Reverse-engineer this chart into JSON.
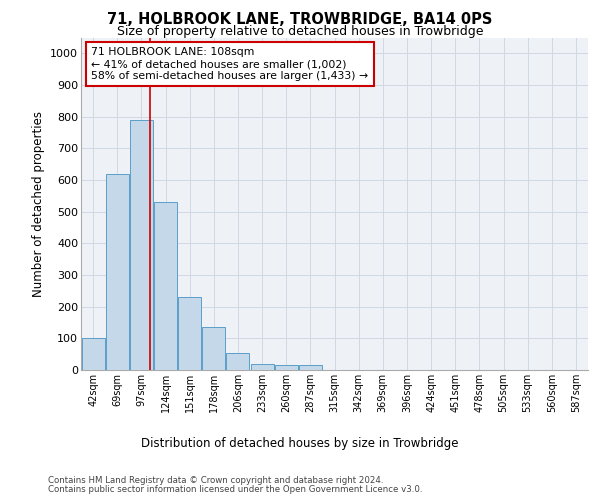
{
  "title1": "71, HOLBROOK LANE, TROWBRIDGE, BA14 0PS",
  "title2": "Size of property relative to detached houses in Trowbridge",
  "xlabel": "Distribution of detached houses by size in Trowbridge",
  "ylabel": "Number of detached properties",
  "categories": [
    "42sqm",
    "69sqm",
    "97sqm",
    "124sqm",
    "151sqm",
    "178sqm",
    "206sqm",
    "233sqm",
    "260sqm",
    "287sqm",
    "315sqm",
    "342sqm",
    "369sqm",
    "396sqm",
    "424sqm",
    "451sqm",
    "478sqm",
    "505sqm",
    "533sqm",
    "560sqm",
    "587sqm"
  ],
  "bar_heights": [
    100,
    620,
    790,
    530,
    230,
    135,
    55,
    20,
    15,
    15,
    0,
    0,
    0,
    0,
    0,
    0,
    0,
    0,
    0,
    0,
    0
  ],
  "bar_color": "#c5d8ea",
  "bar_edge_color": "#5a9ec9",
  "grid_color": "#d0d8e4",
  "bg_color": "#eef2f7",
  "property_line_x": 2.35,
  "annotation_text": "71 HOLBROOK LANE: 108sqm\n← 41% of detached houses are smaller (1,002)\n58% of semi-detached houses are larger (1,433) →",
  "annotation_box_color": "#ffffff",
  "annotation_box_edge": "#cc0000",
  "property_line_color": "#cc0000",
  "footer1": "Contains HM Land Registry data © Crown copyright and database right 2024.",
  "footer2": "Contains public sector information licensed under the Open Government Licence v3.0.",
  "ylim": [
    0,
    1050
  ],
  "yticks": [
    0,
    100,
    200,
    300,
    400,
    500,
    600,
    700,
    800,
    900,
    1000
  ]
}
